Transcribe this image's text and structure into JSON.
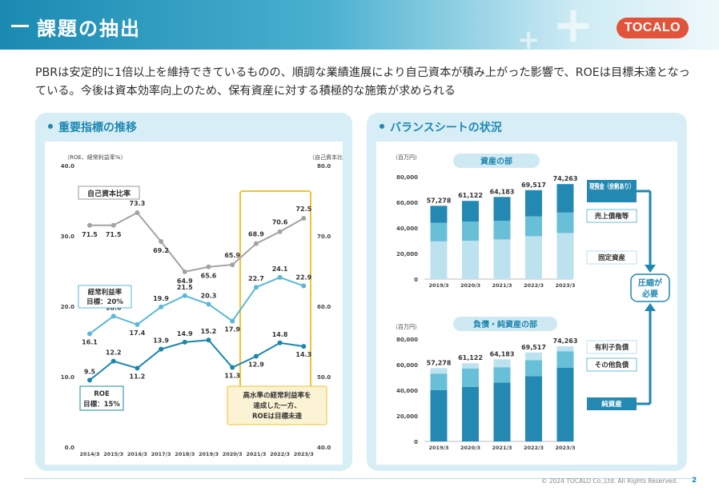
{
  "header": {
    "title": "課題の抽出",
    "logo": "TOCALO"
  },
  "intro": {
    "text": "PBRは安定的に1倍以上を維持できているものの、順調な業績進展により自己資本が積み上がった影響で、ROEは目標未達となっている。今後は資本効率向上のため、保有資産に対する積極的な施策が求められる"
  },
  "left_panel": {
    "title": "重要指標の推移",
    "left_axis_label": "（ROE、経常利益率%）",
    "right_axis_label": "（自己資本比率%）",
    "left_ticks": [
      "40.0",
      "30.0",
      "20.0",
      "10.0",
      "0.0"
    ],
    "right_ticks": [
      "80.0",
      "70.0",
      "60.0",
      "50.0",
      "40.0"
    ],
    "callout_equity": "自己資本比率",
    "callout_margin": [
      "経常利益率",
      "目標：20%"
    ],
    "callout_roe": [
      "ROE",
      "目標：15%"
    ],
    "highlight_note": [
      "高水準の経常利益率を",
      "達成した一方、",
      "ROEは目標未達"
    ]
  },
  "right_panel": {
    "title": "バランスシートの状況",
    "assets_title": "資産の部",
    "liab_title": "負債・純資産の部",
    "unit": "（百万円）",
    "y_ticks": [
      "80,000",
      "60,000",
      "40,000",
      "20,000",
      "0"
    ],
    "asset_labels": [
      "現預金（余剰あり）",
      "売上債権等",
      "固定資産"
    ],
    "liab_labels": [
      "有利子負債",
      "その他負債",
      "純資産"
    ],
    "compress": [
      "圧縮が",
      "必要"
    ]
  },
  "chart_data": [
    {
      "type": "line",
      "x": [
        "2014/3",
        "2015/3",
        "2016/3",
        "2017/3",
        "2018/3",
        "2019/3",
        "2020/3",
        "2021/3",
        "2022/3",
        "2023/3"
      ],
      "series": [
        {
          "name": "自己資本比率",
          "axis": "right",
          "values": [
            71.5,
            71.5,
            73.3,
            69.2,
            64.9,
            65.6,
            65.9,
            68.9,
            70.6,
            72.5
          ]
        },
        {
          "name": "経常利益率",
          "axis": "left",
          "values": [
            16.1,
            18.6,
            17.4,
            19.9,
            21.5,
            20.3,
            17.9,
            22.7,
            24.1,
            22.9
          ]
        },
        {
          "name": "ROE",
          "axis": "left",
          "values": [
            9.5,
            12.2,
            11.2,
            13.9,
            14.9,
            15.2,
            11.3,
            12.9,
            14.8,
            14.3
          ]
        }
      ],
      "ylim": [
        0,
        40
      ],
      "y2lim": [
        40,
        80
      ],
      "highlight": [
        "2021/3",
        "2023/3"
      ]
    },
    {
      "type": "bar",
      "title": "資産の部",
      "categories": [
        "2019/3",
        "2020/3",
        "2021/3",
        "2022/3",
        "2023/3"
      ],
      "totals": [
        57278,
        61122,
        64183,
        69517,
        74263
      ],
      "series": [
        {
          "name": "固定資産",
          "values": [
            29500,
            30000,
            31000,
            33500,
            36000
          ]
        },
        {
          "name": "売上債権等",
          "values": [
            14500,
            15000,
            14500,
            15500,
            16000
          ]
        },
        {
          "name": "現預金（余剰あり）",
          "values": [
            13278,
            16122,
            18683,
            20517,
            22263
          ]
        }
      ],
      "ylim": [
        0,
        80000
      ]
    },
    {
      "type": "bar",
      "title": "負債・純資産の部",
      "categories": [
        "2019/3",
        "2020/3",
        "2021/3",
        "2022/3",
        "2023/3"
      ],
      "totals": [
        57278,
        61122,
        64183,
        69517,
        74263
      ],
      "series": [
        {
          "name": "純資産",
          "values": [
            40000,
            42500,
            46000,
            51000,
            57500
          ]
        },
        {
          "name": "その他負債",
          "values": [
            13000,
            14500,
            12000,
            12500,
            13000
          ]
        },
        {
          "name": "有利子負債",
          "values": [
            4278,
            4122,
            6183,
            6017,
            3763
          ]
        }
      ],
      "ylim": [
        0,
        80000
      ]
    }
  ],
  "footer": {
    "copyright": "© 2024  TOCALO Co.,Ltd. All Rights Reserved.",
    "page": "2"
  },
  "colors": {
    "accent": "#1f87b0",
    "highlight": "#f2c232",
    "gray_line": "#a3a3a3",
    "light_line": "#5ab8d6",
    "dark_line": "#1a86ad",
    "bar_dark": "#2489b2",
    "bar_mid": "#68bfd8",
    "bar_light": "#bde2ef",
    "logo": "#e2533c"
  }
}
